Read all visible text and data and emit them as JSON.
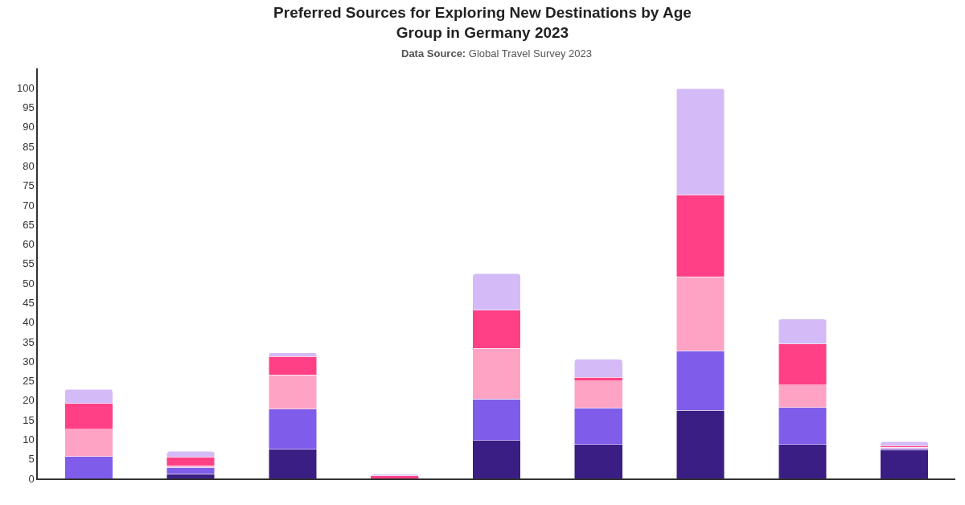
{
  "chart_data": {
    "type": "bar",
    "stacked": true,
    "title": "Preferred Sources for Exploring New Destinations by Age Group in Germany 2023",
    "subtitle": "Data Source: Global Travel Survey 2023",
    "categories": [
      null,
      null,
      null,
      null,
      null,
      null,
      null,
      null,
      null
    ],
    "series": [
      {
        "color": "#3a1e84",
        "values": [
          0,
          1.2,
          7.5,
          0,
          9.7,
          8.7,
          17.4,
          8.7,
          7.4
        ]
      },
      {
        "color": "#7f5dea",
        "values": [
          5.6,
          1.6,
          10.3,
          0,
          10.6,
          9.4,
          15.3,
          9.5,
          0.3
        ]
      },
      {
        "color": "#ffa3c5",
        "values": [
          7.0,
          0.4,
          8.7,
          0,
          13.0,
          6.9,
          18.9,
          5.7,
          0.3
        ]
      },
      {
        "color": "#ff4086",
        "values": [
          6.6,
          2.3,
          4.7,
          0.7,
          9.8,
          0.9,
          21.0,
          10.5,
          0.4
        ]
      },
      {
        "color": "#d4bbf7",
        "values": [
          3.6,
          1.4,
          1.0,
          0.4,
          9.3,
          4.6,
          27.2,
          6.4,
          1.0
        ]
      }
    ],
    "ylim": [
      0,
      105
    ],
    "yticks": [
      0,
      5,
      10,
      15,
      20,
      25,
      30,
      35,
      40,
      45,
      50,
      55,
      60,
      65,
      70,
      75,
      80,
      85,
      90,
      95,
      100
    ],
    "tick_labels": "y"
  }
}
